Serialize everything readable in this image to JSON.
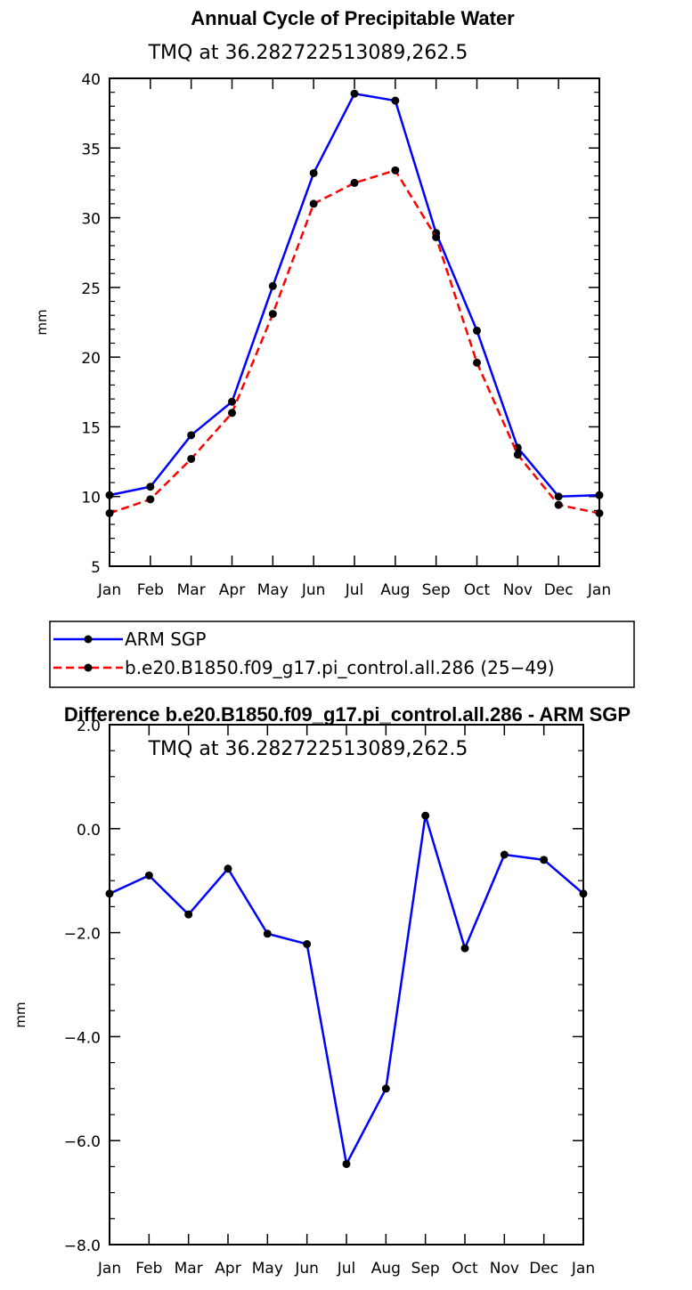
{
  "chart_data": [
    {
      "type": "line",
      "title": "Annual Cycle of Precipitable Water",
      "subtitle": "TMQ at 36.282722513089,262.5",
      "xlabel": "",
      "ylabel": "mm",
      "categories": [
        "Jan",
        "Feb",
        "Mar",
        "Apr",
        "May",
        "Jun",
        "Jul",
        "Aug",
        "Sep",
        "Oct",
        "Nov",
        "Dec",
        "Jan"
      ],
      "ylim": [
        5,
        40
      ],
      "yticks": [
        "5",
        "10",
        "15",
        "20",
        "25",
        "30",
        "35",
        "40"
      ],
      "yticks_values": [
        5,
        10,
        15,
        20,
        25,
        30,
        35,
        40
      ],
      "series": [
        {
          "name": "ARM SGP",
          "color": "#0000ff",
          "dash": "solid",
          "values": [
            10.1,
            10.7,
            14.4,
            16.8,
            25.1,
            33.2,
            38.9,
            38.4,
            28.9,
            21.9,
            13.5,
            10.0,
            10.1
          ]
        },
        {
          "name": "b.e20.B1850.f09_g17.pi_control.all.286 (25−49)",
          "color": "#ff0000",
          "dash": "dashed",
          "values": [
            8.8,
            9.8,
            12.7,
            16.0,
            23.1,
            31.0,
            32.5,
            33.4,
            28.6,
            19.6,
            13.0,
            9.4,
            8.8
          ]
        }
      ]
    },
    {
      "type": "line",
      "title": "Difference b.e20.B1850.f09_g17.pi_control.all.286 - ARM SGP",
      "subtitle": "TMQ at 36.282722513089,262.5",
      "xlabel": "",
      "ylabel": "mm",
      "categories": [
        "Jan",
        "Feb",
        "Mar",
        "Apr",
        "May",
        "Jun",
        "Jul",
        "Aug",
        "Sep",
        "Oct",
        "Nov",
        "Dec",
        "Jan"
      ],
      "ylim": [
        -8.0,
        2.0
      ],
      "yticks": [
        "−8.0",
        "−6.0",
        "−4.0",
        "−2.0",
        "0.0",
        "2.0"
      ],
      "yticks_values": [
        -8,
        -6,
        -4,
        -2,
        0,
        2
      ],
      "series": [
        {
          "name": "Difference",
          "color": "#0000ff",
          "dash": "solid",
          "values": [
            -1.25,
            -0.9,
            -1.65,
            -0.77,
            -2.02,
            -2.22,
            -6.45,
            -5.0,
            0.25,
            -2.3,
            -0.5,
            -0.6,
            -1.25
          ]
        }
      ]
    }
  ]
}
